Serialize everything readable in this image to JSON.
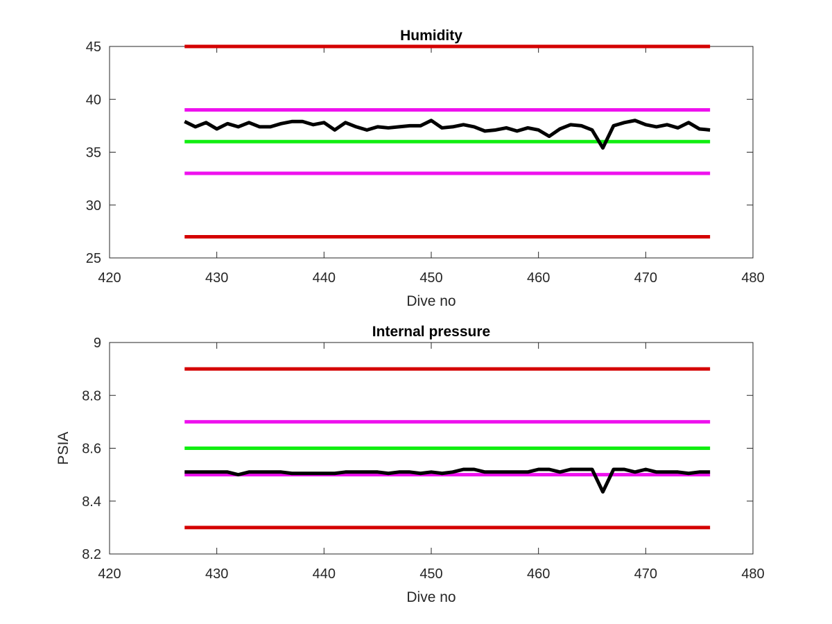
{
  "colors": {
    "red": "#d40000",
    "magenta": "#ee11ee",
    "green": "#11ee11",
    "black": "#000000"
  },
  "chart_data": [
    {
      "type": "line",
      "title": "Humidity",
      "xlabel": "Dive no",
      "ylabel": "",
      "xlim": [
        420,
        480
      ],
      "ylim": [
        25,
        45
      ],
      "xticks": [
        420,
        430,
        440,
        450,
        460,
        470,
        480
      ],
      "yticks": [
        25,
        30,
        35,
        40,
        45
      ],
      "xtick_labels": [
        "420",
        "430",
        "440",
        "450",
        "460",
        "470",
        "480"
      ],
      "ytick_labels": [
        "25",
        "30",
        "35",
        "40",
        "45"
      ],
      "grid": false,
      "hlines": [
        {
          "y": 45,
          "x": [
            427,
            476
          ],
          "color": "red"
        },
        {
          "y": 39,
          "x": [
            427,
            476
          ],
          "color": "magenta"
        },
        {
          "y": 36,
          "x": [
            427,
            476
          ],
          "color": "green"
        },
        {
          "y": 33,
          "x": [
            427,
            476
          ],
          "color": "magenta"
        },
        {
          "y": 27,
          "x": [
            427,
            476
          ],
          "color": "red"
        }
      ],
      "series": [
        {
          "color": "black",
          "x": [
            427,
            428,
            429,
            430,
            431,
            432,
            433,
            434,
            435,
            436,
            437,
            438,
            439,
            440,
            441,
            442,
            443,
            444,
            445,
            446,
            447,
            448,
            449,
            450,
            451,
            452,
            453,
            454,
            455,
            456,
            457,
            458,
            459,
            460,
            461,
            462,
            463,
            464,
            465,
            466,
            467,
            468,
            469,
            470,
            471,
            472,
            473,
            474,
            475,
            476
          ],
          "values": [
            37.9,
            37.4,
            37.8,
            37.2,
            37.7,
            37.4,
            37.8,
            37.4,
            37.4,
            37.7,
            37.9,
            37.9,
            37.6,
            37.8,
            37.1,
            37.8,
            37.4,
            37.1,
            37.4,
            37.3,
            37.4,
            37.5,
            37.5,
            38.0,
            37.3,
            37.4,
            37.6,
            37.4,
            37.0,
            37.1,
            37.3,
            37.0,
            37.3,
            37.1,
            36.5,
            37.2,
            37.6,
            37.5,
            37.1,
            35.4,
            37.5,
            37.8,
            38.0,
            37.6,
            37.4,
            37.6,
            37.3,
            37.8,
            37.2,
            37.1
          ]
        }
      ]
    },
    {
      "type": "line",
      "title": "Internal pressure",
      "xlabel": "Dive no",
      "ylabel": "PSIA",
      "xlim": [
        420,
        480
      ],
      "ylim": [
        8.2,
        9.0
      ],
      "xticks": [
        420,
        430,
        440,
        450,
        460,
        470,
        480
      ],
      "yticks": [
        8.2,
        8.4,
        8.6,
        8.8,
        9.0
      ],
      "xtick_labels": [
        "420",
        "430",
        "440",
        "450",
        "460",
        "470",
        "480"
      ],
      "ytick_labels": [
        "8.2",
        "8.4",
        "8.6",
        "8.8",
        "9"
      ],
      "grid": false,
      "hlines": [
        {
          "y": 8.9,
          "x": [
            427,
            476
          ],
          "color": "red"
        },
        {
          "y": 8.7,
          "x": [
            427,
            476
          ],
          "color": "magenta"
        },
        {
          "y": 8.6,
          "x": [
            427,
            476
          ],
          "color": "green"
        },
        {
          "y": 8.5,
          "x": [
            427,
            476
          ],
          "color": "magenta"
        },
        {
          "y": 8.3,
          "x": [
            427,
            476
          ],
          "color": "red"
        }
      ],
      "series": [
        {
          "color": "black",
          "x": [
            427,
            428,
            429,
            430,
            431,
            432,
            433,
            434,
            435,
            436,
            437,
            438,
            439,
            440,
            441,
            442,
            443,
            444,
            445,
            446,
            447,
            448,
            449,
            450,
            451,
            452,
            453,
            454,
            455,
            456,
            457,
            458,
            459,
            460,
            461,
            462,
            463,
            464,
            465,
            466,
            467,
            468,
            469,
            470,
            471,
            472,
            473,
            474,
            475,
            476
          ],
          "values": [
            8.51,
            8.51,
            8.51,
            8.51,
            8.51,
            8.5,
            8.51,
            8.51,
            8.51,
            8.51,
            8.505,
            8.505,
            8.505,
            8.505,
            8.505,
            8.51,
            8.51,
            8.51,
            8.51,
            8.505,
            8.51,
            8.51,
            8.505,
            8.51,
            8.505,
            8.51,
            8.52,
            8.52,
            8.51,
            8.51,
            8.51,
            8.51,
            8.51,
            8.52,
            8.52,
            8.51,
            8.52,
            8.52,
            8.52,
            8.435,
            8.52,
            8.52,
            8.51,
            8.52,
            8.51,
            8.51,
            8.51,
            8.505,
            8.51,
            8.51
          ]
        }
      ]
    }
  ]
}
